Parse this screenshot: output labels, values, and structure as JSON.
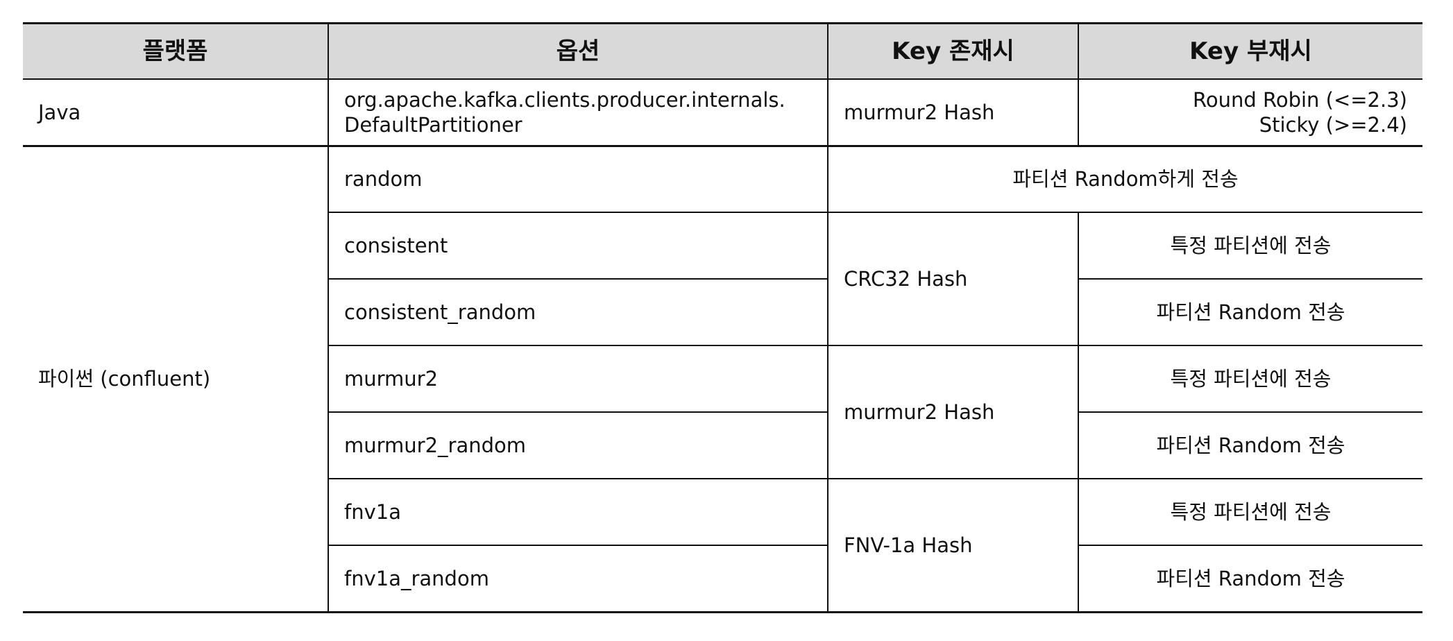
{
  "headers": [
    "플랫폼",
    "옵션",
    "Key 존재시",
    "Key 부재시"
  ],
  "java_row": {
    "platform": "Java",
    "option_line1": "org.apache.kafka.clients.producer.internals.",
    "option_line2": "DefaultPartitioner",
    "key_present": "murmur2 Hash",
    "key_absent_line1": "Round Robin (<=2.3)",
    "key_absent_line2": "Sticky (>=2.4)"
  },
  "python": {
    "platform": "파이썬 (confluent)",
    "random_option": "random",
    "random_both": "파티션 Random하게 전송",
    "groups": [
      {
        "hash": "CRC32 Hash",
        "rows": [
          {
            "option": "consistent",
            "key_absent": "특정 파티션에 전송"
          },
          {
            "option": "consistent_random",
            "key_absent": "파티션 Random 전송"
          }
        ]
      },
      {
        "hash": "murmur2 Hash",
        "rows": [
          {
            "option": "murmur2",
            "key_absent": "특정 파티션에 전송"
          },
          {
            "option": "murmur2_random",
            "key_absent": "파티션 Random 전송"
          }
        ]
      },
      {
        "hash": "FNV-1a Hash",
        "rows": [
          {
            "option": "fnv1a",
            "key_absent": "특정 파티션에 전송"
          },
          {
            "option": "fnv1a_random",
            "key_absent": "파티션 Random 전송"
          }
        ]
      }
    ]
  }
}
